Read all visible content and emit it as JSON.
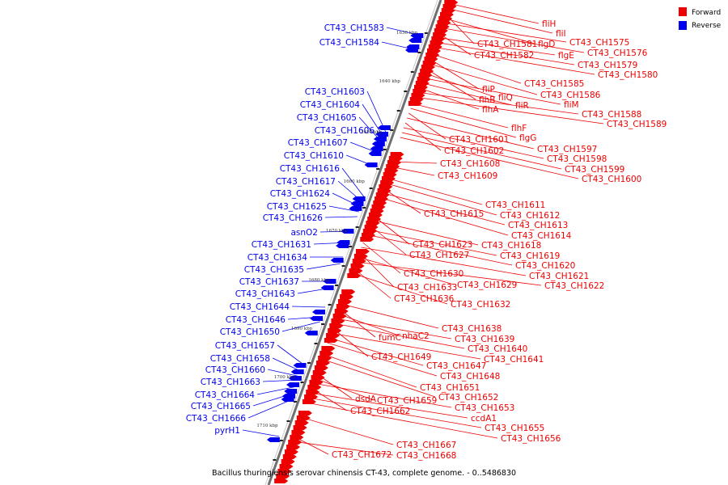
{
  "caption": "Bacillus thuringiensis serovar chinensis CT-43, complete genome. - 0..5486830",
  "legend": [
    {
      "label": "Forward",
      "color": "#ee0000"
    },
    {
      "label": "Reverse",
      "color": "#0000ee"
    }
  ],
  "colors": {
    "forward": "#ee0000",
    "reverse": "#0000ee",
    "backbone": "#707070",
    "leader_fwd": "#ee0000",
    "leader_rev": "#0000ee"
  },
  "ticks": [
    "1630 kbp",
    "1640 kbp",
    "1650 kbp",
    "1660 kbp",
    "1670 kbp",
    "1680 kbp",
    "1690 kbp",
    "1700 kbp",
    "1710 kbp"
  ],
  "forward_labels": [
    "fliH",
    "fliI",
    "CT43_CH1581",
    "flgD",
    "CT43_CH1575",
    "CT43_CH1576",
    "CT43_CH1582",
    "flgE",
    "CT43_CH1579",
    "CT43_CH1580",
    "CT43_CH1585",
    "fliP",
    "CT43_CH1586",
    "flhB",
    "fliQ",
    "fliM",
    "fliR",
    "flhA",
    "CT43_CH1588",
    "CT43_CH1589",
    "flhF",
    "flgG",
    "CT43_CH1601",
    "CT43_CH1597",
    "CT43_CH1602",
    "CT43_CH1598",
    "CT43_CH1608",
    "CT43_CH1599",
    "CT43_CH1609",
    "CT43_CH1600",
    "CT43_CH1611",
    "CT43_CH1612",
    "CT43_CH1615",
    "CT43_CH1613",
    "CT43_CH1614",
    "CT43_CH1623",
    "CT43_CH1618",
    "CT43_CH1627",
    "CT43_CH1619",
    "CT43_CH1620",
    "CT43_CH1630",
    "CT43_CH1621",
    "CT43_CH1633",
    "CT43_CH1629",
    "CT43_CH1622",
    "CT43_CH1636",
    "CT43_CH1632",
    "CT43_CH1638",
    "fumC",
    "nhaC2",
    "CT43_CH1639",
    "CT43_CH1640",
    "CT43_CH1649",
    "CT43_CH1641",
    "CT43_CH1647",
    "CT43_CH1648",
    "CT43_CH1651",
    "CT43_CH1652",
    "dsdA",
    "CT43_CH1659",
    "CT43_CH1653",
    "CT43_CH1662",
    "ccdA1",
    "CT43_CH1655",
    "CT43_CH1656",
    "CT43_CH1667",
    "CT43_CH1672",
    "CT43_CH1668"
  ],
  "reverse_labels": [
    "CT43_CH1583",
    "CT43_CH1584",
    "CT43_CH1603",
    "CT43_CH1604",
    "CT43_CH1605",
    "CT43_CH1606",
    "CT43_CH1607",
    "CT43_CH1610",
    "CT43_CH1616",
    "CT43_CH1617",
    "CT43_CH1624",
    "CT43_CH1625",
    "CT43_CH1626",
    "asnO2",
    "CT43_CH1631",
    "CT43_CH1634",
    "CT43_CH1635",
    "CT43_CH1637",
    "CT43_CH1643",
    "CT43_CH1644",
    "CT43_CH1646",
    "CT43_CH1650",
    "CT43_CH1657",
    "CT43_CH1658",
    "CT43_CH1660",
    "CT43_CH1663",
    "CT43_CH1664",
    "CT43_CH1665",
    "CT43_CH1666",
    "pyrH1"
  ]
}
